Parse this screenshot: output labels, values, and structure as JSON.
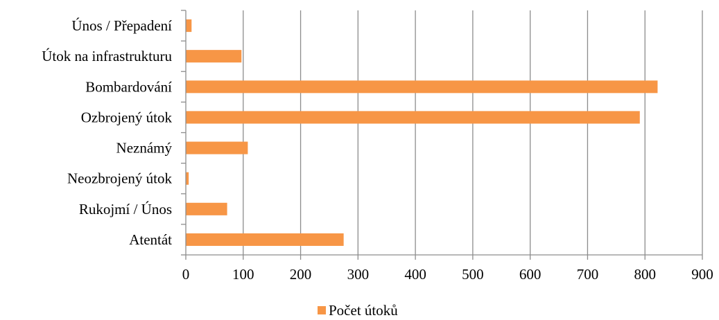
{
  "chart_data": {
    "type": "bar",
    "orientation": "horizontal",
    "categories": [
      "Únos / Přepadení",
      "Útok na infrastrukturu",
      "Bombardování",
      "Ozbrojený útok",
      "Neznámý",
      "Neozbrojený útok",
      "Rukojmí / Únos",
      "Atentát"
    ],
    "series": [
      {
        "name": "Počet útoků",
        "values": [
          10,
          97,
          822,
          791,
          108,
          5,
          72,
          275
        ]
      }
    ],
    "xlim": [
      0,
      900
    ],
    "xticks": [
      0,
      100,
      200,
      300,
      400,
      500,
      600,
      700,
      800,
      900
    ],
    "grid": "vertical",
    "legend_position": "bottom",
    "colors": {
      "bar": "#F79646",
      "grid": "#8C8C8C",
      "axis": "#8C8C8C"
    }
  }
}
